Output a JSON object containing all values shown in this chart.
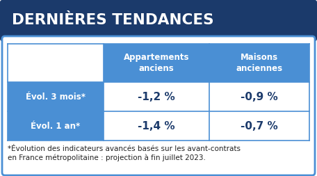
{
  "title": "DERNIÈRES TENDANCES",
  "title_bg": "#1b3a6b",
  "title_color": "#ffffff",
  "outer_bg": "#ffffff",
  "border_color": "#4a8fd4",
  "col_header_bg": "#4a8fd4",
  "col_header_color": "#ffffff",
  "row_header_bg": "#4a8fd4",
  "row_header_color": "#ffffff",
  "cell_bg": "#ffffff",
  "cell_color": "#1b3a6b",
  "divider_color": "#4a8fd4",
  "col_headers": [
    "Appartements\nanciens",
    "Maisons\nanciennes"
  ],
  "row_headers": [
    "Évol. 3 mois*",
    "Évol. 1 an*"
  ],
  "values": [
    [
      "-1,2 %",
      "-0,9 %"
    ],
    [
      "-1,4 %",
      "-0,7 %"
    ]
  ],
  "footnote_line1": "*Évolution des indicateurs avancés basés sur les avant-contrats",
  "footnote_line2": "en France métropolitaine : projection à fin juillet 2023.",
  "footnote_color": "#222222",
  "footnote_size": 7.5,
  "title_fontsize": 15.5,
  "header_fontsize": 8.5,
  "row_label_fontsize": 8.5,
  "value_fontsize": 11.0
}
